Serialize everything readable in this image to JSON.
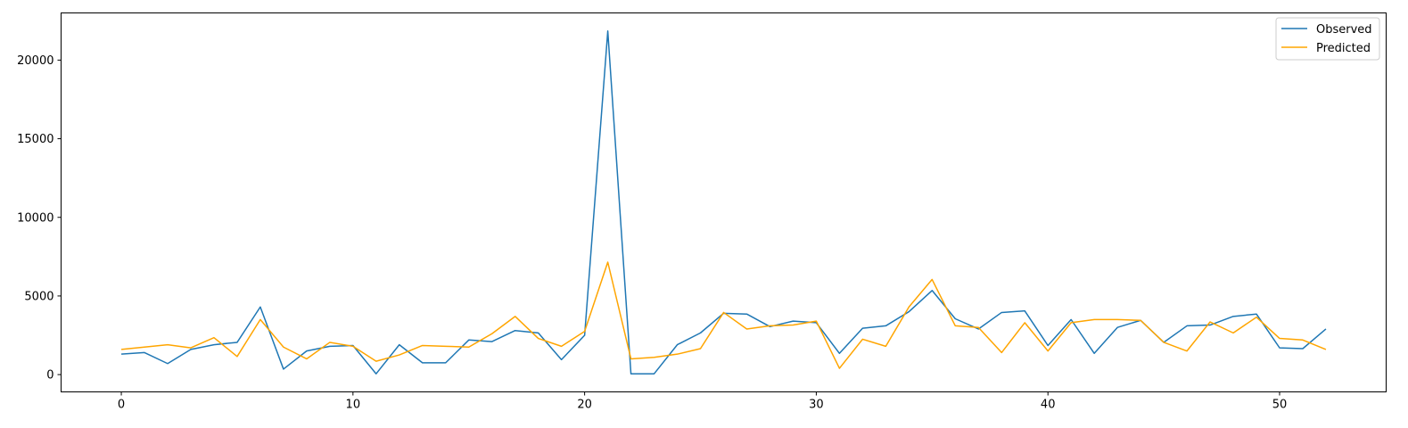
{
  "chart_data": {
    "type": "line",
    "title": "",
    "xlabel": "",
    "ylabel": "",
    "xlim": [
      -2.6,
      54.6
    ],
    "ylim": [
      -1100,
      23000
    ],
    "xticks": [
      0,
      10,
      20,
      30,
      40,
      50
    ],
    "yticks": [
      0,
      5000,
      10000,
      15000,
      20000
    ],
    "grid": false,
    "legend_position": "top-right",
    "x": [
      0,
      1,
      2,
      3,
      4,
      5,
      6,
      7,
      8,
      9,
      10,
      11,
      12,
      13,
      14,
      15,
      16,
      17,
      18,
      19,
      20,
      21,
      22,
      23,
      24,
      25,
      26,
      27,
      28,
      29,
      30,
      31,
      32,
      33,
      34,
      35,
      36,
      37,
      38,
      39,
      40,
      41,
      42,
      43,
      44,
      45,
      46,
      47,
      48,
      49,
      50,
      51,
      52
    ],
    "series": [
      {
        "name": "Observed",
        "color": "#1f77b4",
        "values": [
          1300,
          1400,
          700,
          1600,
          1900,
          2050,
          4300,
          350,
          1500,
          1800,
          1850,
          50,
          1900,
          750,
          750,
          2200,
          2100,
          2800,
          2650,
          950,
          2500,
          21850,
          50,
          50,
          1900,
          2650,
          3900,
          3850,
          3050,
          3400,
          3300,
          1350,
          2950,
          3100,
          4000,
          5350,
          3550,
          2900,
          3950,
          4050,
          1850,
          3500,
          1350,
          3000,
          3450,
          2050,
          3100,
          3150,
          3700,
          3850,
          1700,
          1650,
          2900
        ]
      },
      {
        "name": "Predicted",
        "color": "#ffa500",
        "values": [
          1600,
          1750,
          1900,
          1700,
          2350,
          1150,
          3500,
          1750,
          1000,
          2050,
          1800,
          850,
          1250,
          1850,
          1800,
          1750,
          2600,
          3700,
          2300,
          1800,
          2750,
          7150,
          1000,
          1100,
          1300,
          1650,
          3950,
          2900,
          3100,
          3150,
          3400,
          400,
          2250,
          1800,
          4300,
          6050,
          3100,
          3000,
          1400,
          3300,
          1500,
          3300,
          3500,
          3500,
          3450,
          2050,
          1500,
          3350,
          2650,
          3650,
          2300,
          2200,
          1600
        ]
      }
    ]
  }
}
